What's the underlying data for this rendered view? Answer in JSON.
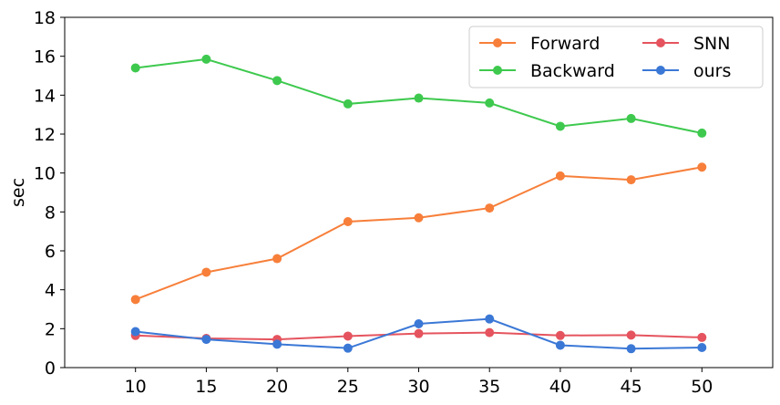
{
  "chart_data": {
    "type": "line",
    "x": [
      10,
      15,
      20,
      25,
      30,
      35,
      40,
      45,
      50
    ],
    "xlim": [
      5,
      55
    ],
    "ylim": [
      0,
      18
    ],
    "xticks": [
      10,
      15,
      20,
      25,
      30,
      35,
      40,
      45,
      50
    ],
    "yticks": [
      0,
      2,
      4,
      6,
      8,
      10,
      12,
      14,
      16,
      18
    ],
    "xlabel": "",
    "ylabel": "sec",
    "grid": false,
    "legend_position": "top-right",
    "legend_columns": 2,
    "series": [
      {
        "name": "Forward",
        "color": "#f77f3a",
        "values": [
          3.5,
          4.9,
          5.6,
          7.5,
          7.7,
          8.2,
          9.85,
          9.65,
          10.3
        ]
      },
      {
        "name": "Backward",
        "color": "#3ec94e",
        "values": [
          15.4,
          15.85,
          14.75,
          13.55,
          13.85,
          13.6,
          12.4,
          12.8,
          12.05
        ]
      },
      {
        "name": "SNN",
        "color": "#e5545e",
        "values": [
          1.65,
          1.5,
          1.45,
          1.62,
          1.75,
          1.8,
          1.65,
          1.67,
          1.55
        ]
      },
      {
        "name": "ours",
        "color": "#3b78d6",
        "values": [
          1.85,
          1.45,
          1.2,
          1.0,
          2.25,
          2.5,
          1.15,
          0.97,
          1.03
        ]
      }
    ]
  }
}
